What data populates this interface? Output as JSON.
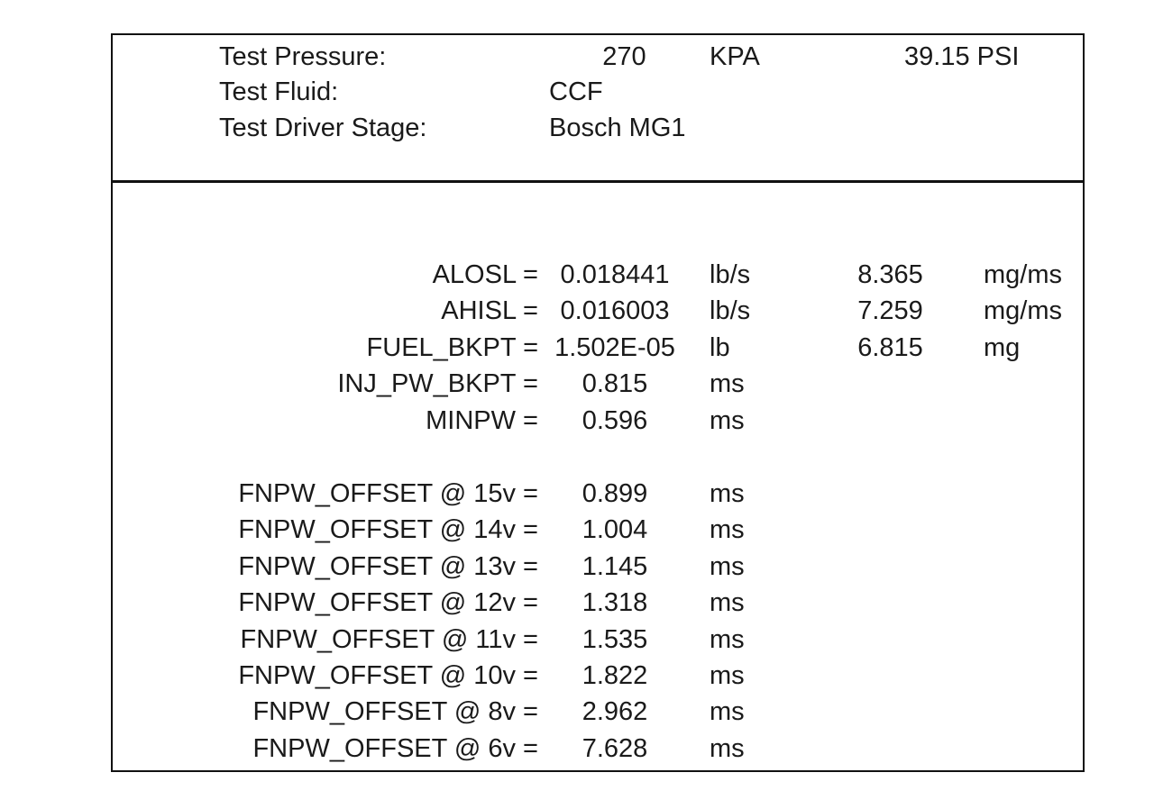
{
  "header": {
    "pressure_label": "Test Pressure:",
    "pressure_value": "270",
    "pressure_unit": "KPA",
    "pressure_psi": "39.15 PSI",
    "fluid_label": "Test Fluid:",
    "fluid_value": "CCF",
    "driver_label": "Test Driver Stage:",
    "driver_value": "Bosch MG1"
  },
  "params": [
    {
      "label": "ALOSL =",
      "value": "0.018441",
      "unit": "lb/s",
      "alt_value": "8.365",
      "alt_unit": "mg/ms"
    },
    {
      "label": "AHISL =",
      "value": "0.016003",
      "unit": "lb/s",
      "alt_value": "7.259",
      "alt_unit": "mg/ms"
    },
    {
      "label": "FUEL_BKPT =",
      "value": "1.502E-05",
      "unit": "lb",
      "alt_value": "6.815",
      "alt_unit": "mg"
    },
    {
      "label": "INJ_PW_BKPT =",
      "value": "0.815",
      "unit": "ms"
    },
    {
      "label": "MINPW =",
      "value": "0.596",
      "unit": "ms"
    }
  ],
  "offsets": [
    {
      "label": "FNPW_OFFSET @ 15v =",
      "value": "0.899",
      "unit": "ms"
    },
    {
      "label": "FNPW_OFFSET @ 14v =",
      "value": "1.004",
      "unit": "ms"
    },
    {
      "label": "FNPW_OFFSET @ 13v =",
      "value": "1.145",
      "unit": "ms"
    },
    {
      "label": "FNPW_OFFSET @ 12v =",
      "value": "1.318",
      "unit": "ms"
    },
    {
      "label": "FNPW_OFFSET @ 11v =",
      "value": "1.535",
      "unit": "ms"
    },
    {
      "label": "FNPW_OFFSET @ 10v =",
      "value": "1.822",
      "unit": "ms"
    },
    {
      "label": "FNPW_OFFSET @ 8v =",
      "value": "2.962",
      "unit": "ms"
    },
    {
      "label": "FNPW_OFFSET @ 6v =",
      "value": "7.628",
      "unit": "ms"
    }
  ]
}
